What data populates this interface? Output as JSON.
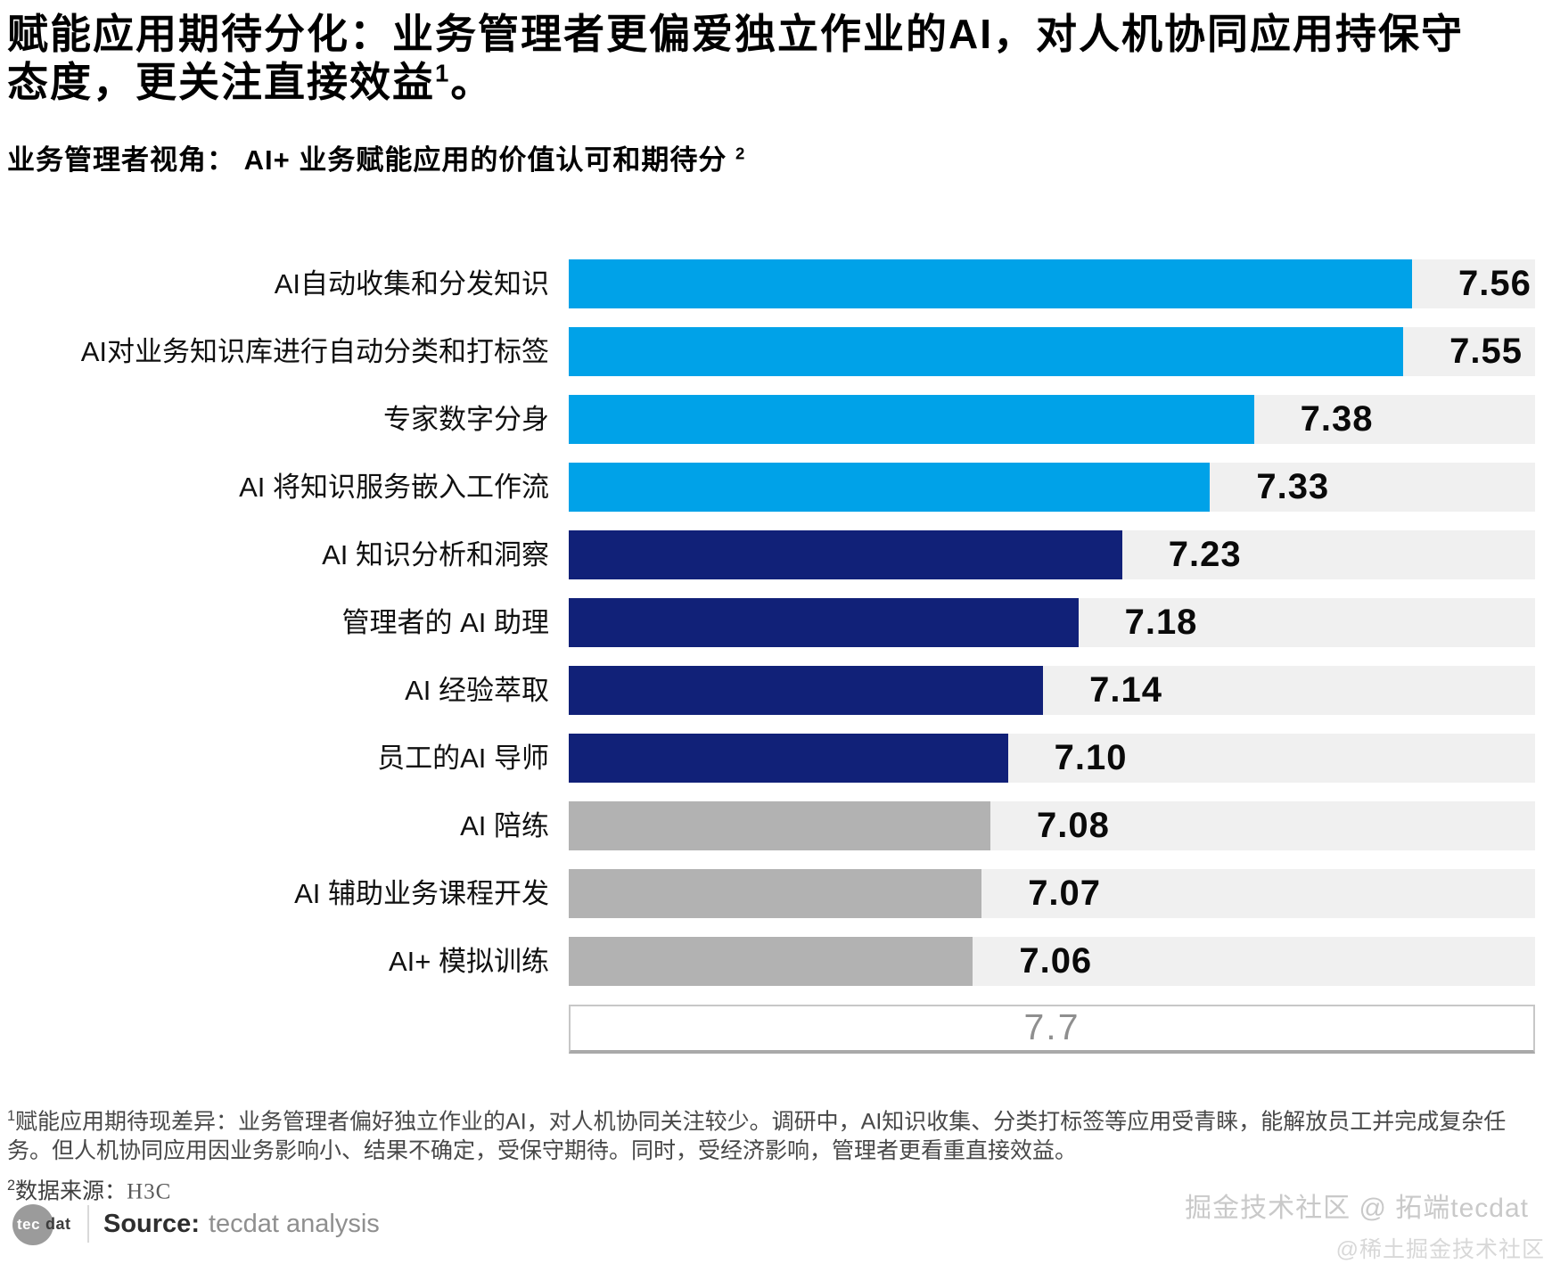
{
  "header": {
    "title": "赋能应用期待分化：业务管理者更偏爱独立作业的AI，对人机协同应用持保守态度，更关注直接效益",
    "title_sup": "1",
    "title_period": "。",
    "subtitle": "业务管理者视角： AI+ 业务赋能应用的价值认可和期待分",
    "subtitle_sup": "2"
  },
  "chart_data": {
    "type": "bar",
    "orientation": "horizontal",
    "title": "业务管理者视角： AI+ 业务赋能应用的价值认可和期待分",
    "categories": [
      "AI自动收集和分发知识",
      "AI对业务知识库进行自动分类和打标签",
      "专家数字分身",
      "AI 将知识服务嵌入工作流",
      "AI 知识分析和洞察",
      "管理者的 AI 助理",
      "AI 经验萃取",
      "员工的AI 导师",
      "AI 陪练",
      "AI 辅助业务课程开发",
      "AI+ 模拟训练"
    ],
    "values": [
      7.56,
      7.55,
      7.38,
      7.33,
      7.23,
      7.18,
      7.14,
      7.1,
      7.08,
      7.07,
      7.06
    ],
    "groups": [
      "light-blue",
      "light-blue",
      "light-blue",
      "light-blue",
      "navy",
      "navy",
      "navy",
      "navy",
      "gray",
      "gray",
      "gray"
    ],
    "axis_box_value": "7.7",
    "xlim": [
      6.6,
      7.7
    ],
    "grid": false,
    "legend": "none",
    "colors": {
      "light-blue": "#00A2E8",
      "navy": "#112178",
      "gray": "#B2B2B2",
      "track": "#F0F0F0"
    }
  },
  "footnotes": {
    "note1_sup": "1",
    "note1": "赋能应用期待现差异：业务管理者偏好独立作业的AI，对人机协同关注较少。调研中，AI知识收集、分类打标签等应用受青睐，能解放员工并完成复杂任务。但人机协同应用因业务影响小、结果不确定，受保守期待。同时，受经济影响，管理者更看重直接效益。",
    "note2_sup": "2",
    "note2_label": "数据来源：",
    "note2_value": "H3C"
  },
  "footer": {
    "logo_circle_text": "tec",
    "logo_rest_text": "dat",
    "source_label": "Source:",
    "source_value": "tecdat analysis"
  },
  "watermarks": {
    "line1": "掘金技术社区 @ 拓端tecdat",
    "line2": "@稀土掘金技术社区"
  }
}
